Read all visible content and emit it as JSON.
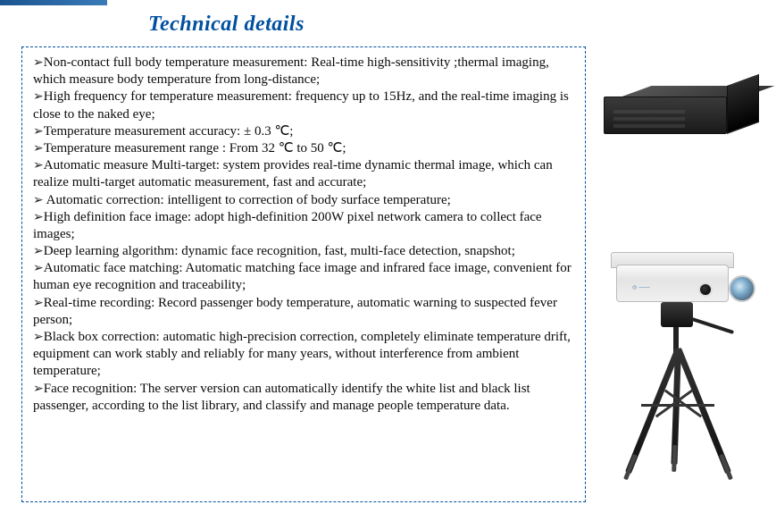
{
  "colors": {
    "title": "#0050a0",
    "border": "#0050a0",
    "body_text": "#0a0a0a",
    "background": "#ffffff"
  },
  "typography": {
    "title_fontsize": 24,
    "title_style": "bold italic",
    "body_fontsize": 15,
    "body_family": "Times New Roman"
  },
  "title": "Technical details",
  "bullets": [
    "Non-contact full body temperature measurement: Real-time high-sensitivity ;thermal imaging, which measure body temperature from long-distance;",
    "High  frequency for temperature measurement:  frequency up to 15Hz, and the real-time imaging is close to the naked eye;",
    "Temperature measurement accuracy: ± 0.3 ℃;",
    "Temperature measurement range : From 32 ℃ to 50 ℃;",
    "Automatic measure Multi-target: system provides real-time dynamic thermal image, which can realize multi-target automatic measurement, fast and accurate;",
    " Automatic correction: intelligent to correction of body surface temperature;",
    "High definition face image: adopt high-definition 200W pixel network camera to collect face images;",
    "Deep learning algorithm: dynamic face recognition, fast, multi-face detection, snapshot;",
    "Automatic face matching: Automatic matching face image and infrared face image, convenient for human eye recognition and traceability;",
    "Real-time recording: Record passenger body temperature, automatic warning to suspected fever person;",
    "Black box correction: automatic high-precision correction, completely eliminate temperature drift, equipment can work stably and reliably for many years, without interference from ambient temperature;",
    "Face recognition: The server version can automatically identify the white list and black list passenger,  according to the list library, and classify and manage people temperature data."
  ],
  "images": {
    "server": {
      "semantic": "mini-pc-server-box",
      "color": "#222222"
    },
    "camera": {
      "semantic": "thermal-camera-on-tripod",
      "housing_color": "#eeeeee",
      "tripod_color": "#222222"
    }
  }
}
